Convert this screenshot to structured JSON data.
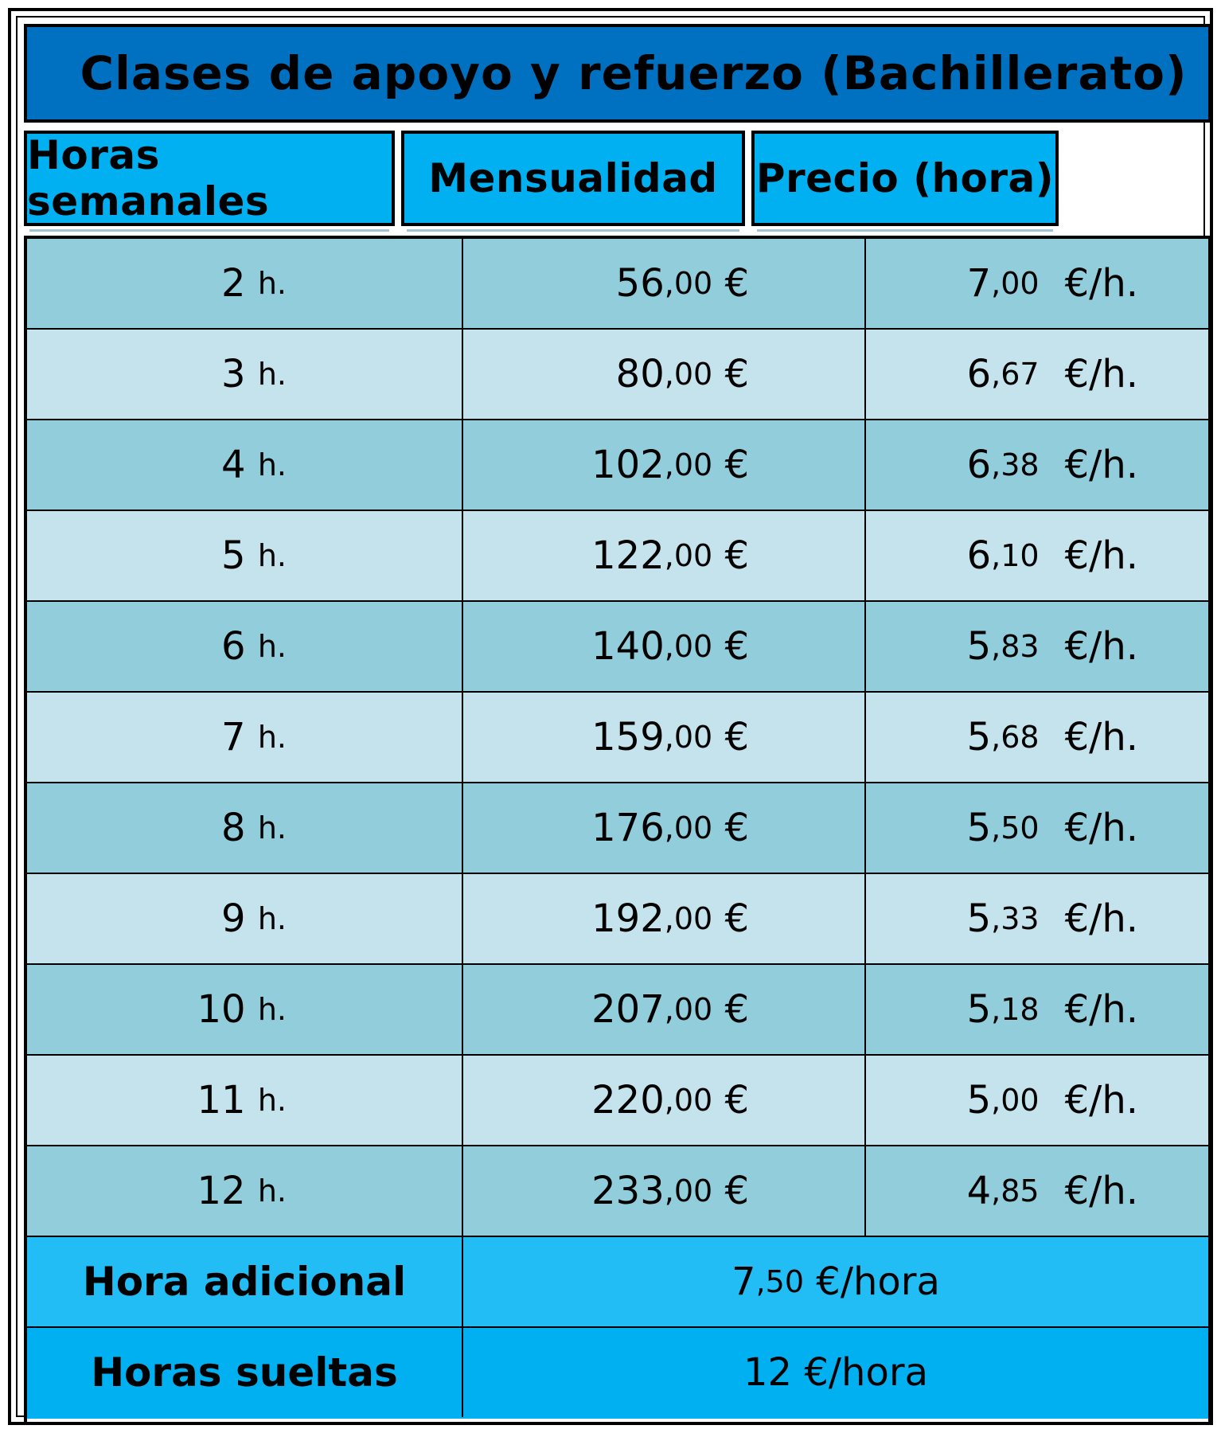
{
  "title": "Clases de apoyo y refuerzo (Bachillerato)",
  "headers": [
    "Horas semanales",
    "Mensualidad",
    "Precio (hora)"
  ],
  "rows": [
    {
      "hours_num": "2",
      "hours_unit": "h.",
      "monthly_int": "56",
      "monthly_dec": ",00",
      "monthly_cur": "€",
      "rate_int": "7",
      "rate_dec": ",00",
      "rate_unit": "€/h."
    },
    {
      "hours_num": "3",
      "hours_unit": "h.",
      "monthly_int": "80",
      "monthly_dec": ",00",
      "monthly_cur": "€",
      "rate_int": "6",
      "rate_dec": ",67",
      "rate_unit": "€/h."
    },
    {
      "hours_num": "4",
      "hours_unit": "h.",
      "monthly_int": "102",
      "monthly_dec": ",00",
      "monthly_cur": "€",
      "rate_int": "6",
      "rate_dec": ",38",
      "rate_unit": "€/h."
    },
    {
      "hours_num": "5",
      "hours_unit": "h.",
      "monthly_int": "122",
      "monthly_dec": ",00",
      "monthly_cur": "€",
      "rate_int": "6",
      "rate_dec": ",10",
      "rate_unit": "€/h."
    },
    {
      "hours_num": "6",
      "hours_unit": "h.",
      "monthly_int": "140",
      "monthly_dec": ",00",
      "monthly_cur": "€",
      "rate_int": "5",
      "rate_dec": ",83",
      "rate_unit": "€/h."
    },
    {
      "hours_num": "7",
      "hours_unit": "h.",
      "monthly_int": "159",
      "monthly_dec": ",00",
      "monthly_cur": "€",
      "rate_int": "5",
      "rate_dec": ",68",
      "rate_unit": "€/h."
    },
    {
      "hours_num": "8",
      "hours_unit": "h.",
      "monthly_int": "176",
      "monthly_dec": ",00",
      "monthly_cur": "€",
      "rate_int": "5",
      "rate_dec": ",50",
      "rate_unit": "€/h."
    },
    {
      "hours_num": "9",
      "hours_unit": "h.",
      "monthly_int": "192",
      "monthly_dec": ",00",
      "monthly_cur": "€",
      "rate_int": "5",
      "rate_dec": ",33",
      "rate_unit": "€/h."
    },
    {
      "hours_num": "10",
      "hours_unit": "h.",
      "monthly_int": "207",
      "monthly_dec": ",00",
      "monthly_cur": "€",
      "rate_int": "5",
      "rate_dec": ",18",
      "rate_unit": "€/h."
    },
    {
      "hours_num": "11",
      "hours_unit": "h.",
      "monthly_int": "220",
      "monthly_dec": ",00",
      "monthly_cur": "€",
      "rate_int": "5",
      "rate_dec": ",00",
      "rate_unit": "€/h."
    },
    {
      "hours_num": "12",
      "hours_unit": "h.",
      "monthly_int": "233",
      "monthly_dec": ",00",
      "monthly_cur": "€",
      "rate_int": "4",
      "rate_dec": ",85",
      "rate_unit": "€/h."
    }
  ],
  "footer": [
    {
      "label": "Hora adicional",
      "value_int": "7",
      "value_dec": ",50",
      "value_unit": "€/hora"
    },
    {
      "label": "Horas sueltas",
      "value_int": "12",
      "value_dec": "",
      "value_unit": "€/hora"
    }
  ],
  "colors": {
    "title_bg": "#0070c0",
    "header_bg": "#00b0f0",
    "row_dark": "#92cddc",
    "row_light": "#c4e3ed",
    "footer_1": "#21bdf4",
    "footer_2": "#00b0f0"
  }
}
